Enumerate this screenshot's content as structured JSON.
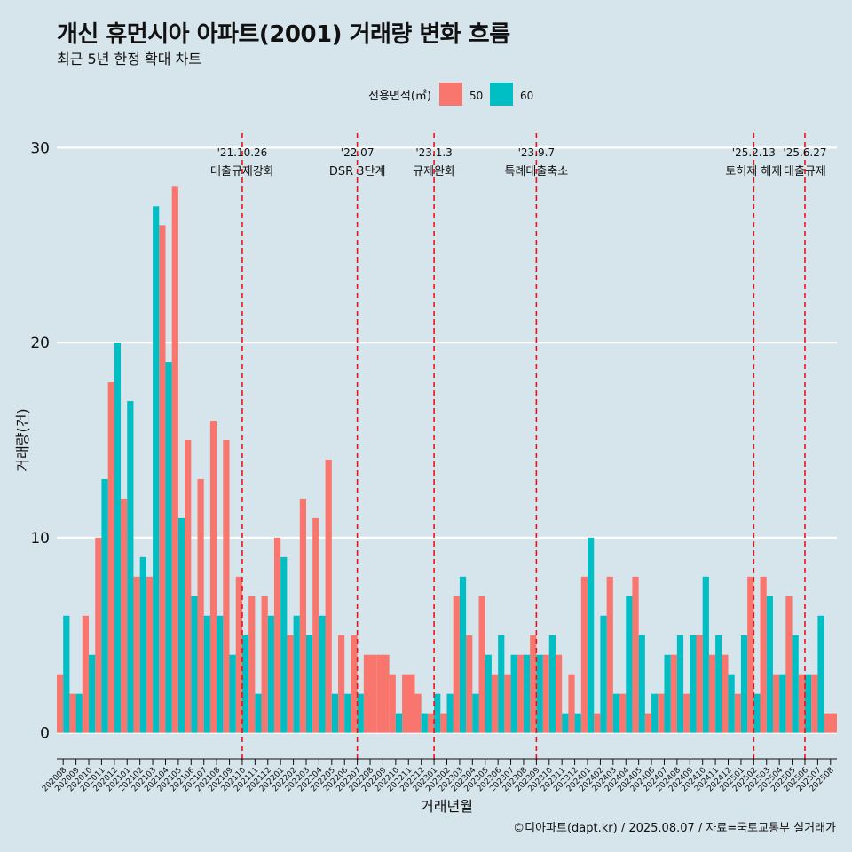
{
  "title": "개신 휴먼시아 아파트(2001) 거래량 변화 흐름",
  "subtitle": "최근 5년 한정 확대 차트",
  "caption": "©디아파트(dapt.kr) / 2025.08.07 / 자료=국토교통부 실거래가",
  "colors": {
    "s50": "#f8766d",
    "s60": "#00bfc4",
    "background": "#d6e4ec",
    "grid": "#ffffff",
    "vline": "#e8141d"
  },
  "chart_data": {
    "type": "bar",
    "title": "개신 휴먼시아 아파트(2001) 거래량 변화 흐름",
    "xlabel": "거래년월",
    "ylabel": "거래량(건)",
    "ylim": [
      -1.2,
      31.2
    ],
    "yticks": [
      0,
      10,
      20,
      30
    ],
    "legend_title": "전용면적(㎡)",
    "legend_position": "top",
    "categories": [
      "202008",
      "202009",
      "202010",
      "202011",
      "202012",
      "202101",
      "202102",
      "202103",
      "202104",
      "202105",
      "202106",
      "202107",
      "202108",
      "202109",
      "202110",
      "202111",
      "202112",
      "202201",
      "202202",
      "202203",
      "202204",
      "202205",
      "202206",
      "202207",
      "202208",
      "202209",
      "202210",
      "202211",
      "202212",
      "202301",
      "202302",
      "202303",
      "202304",
      "202305",
      "202306",
      "202307",
      "202308",
      "202309",
      "202310",
      "202311",
      "202312",
      "202401",
      "202402",
      "202403",
      "202404",
      "202405",
      "202406",
      "202407",
      "202408",
      "202409",
      "202410",
      "202411",
      "202412",
      "202501",
      "202502",
      "202503",
      "202504",
      "202505",
      "202506",
      "202507",
      "202508"
    ],
    "series": [
      {
        "name": "50",
        "values": [
          3,
          2,
          6,
          10,
          18,
          12,
          8,
          8,
          26,
          28,
          15,
          13,
          16,
          15,
          8,
          7,
          7,
          10,
          5,
          12,
          11,
          14,
          5,
          5,
          4,
          4,
          3,
          3,
          2,
          1,
          1,
          7,
          5,
          7,
          3,
          3,
          4,
          5,
          4,
          4,
          3,
          8,
          1,
          8,
          2,
          8,
          1,
          2,
          4,
          2,
          5,
          4,
          4,
          2,
          8,
          8,
          3,
          7,
          3,
          3,
          1
        ]
      },
      {
        "name": "60",
        "values": [
          6,
          2,
          4,
          13,
          20,
          17,
          9,
          27,
          19,
          11,
          7,
          6,
          6,
          4,
          5,
          2,
          6,
          9,
          6,
          5,
          6,
          2,
          2,
          2,
          null,
          null,
          1,
          null,
          1,
          2,
          2,
          8,
          2,
          4,
          5,
          4,
          4,
          4,
          5,
          1,
          1,
          10,
          6,
          2,
          7,
          5,
          2,
          4,
          5,
          5,
          8,
          5,
          3,
          5,
          2,
          7,
          3,
          5,
          3,
          6,
          null
        ]
      }
    ],
    "annotations": [
      {
        "index": 14,
        "date": "'21.10.26",
        "label": "대출규제강화"
      },
      {
        "index": 23,
        "date": "'22.07",
        "label": "DSR 3단계"
      },
      {
        "index": 29,
        "date": "'23.1.3",
        "label": "규제완화"
      },
      {
        "index": 37,
        "date": "'23.9.7",
        "label": "특례대출축소"
      },
      {
        "index": 54,
        "date": "'25.2.13",
        "label": "토허제 해제"
      },
      {
        "index": 58,
        "date": "'25.6.27",
        "label": "대출규제"
      }
    ]
  }
}
